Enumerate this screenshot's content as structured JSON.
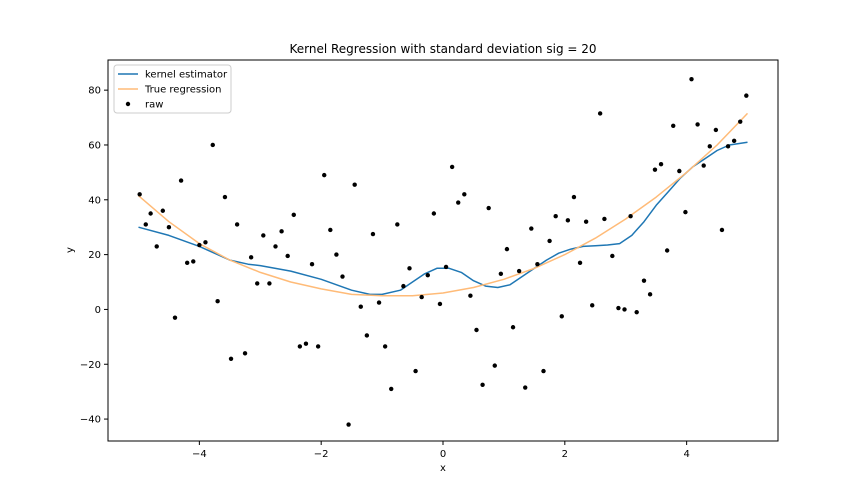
{
  "chart_data": {
    "type": "line",
    "title": "Kernel Regression with standard deviation sig = 20",
    "xlabel": "x",
    "ylabel": "y",
    "xlim": [
      -5.5,
      5.5
    ],
    "ylim": [
      -48,
      91
    ],
    "xticks": [
      -4,
      -2,
      0,
      2,
      4
    ],
    "xtick_labels": [
      "−4",
      "−2",
      "0",
      "2",
      "4"
    ],
    "yticks": [
      -40,
      -20,
      0,
      20,
      40,
      60,
      80
    ],
    "ytick_labels": [
      "−40",
      "−20",
      "0",
      "20",
      "40",
      "60",
      "80"
    ],
    "grid": false,
    "legend_position": "top-left",
    "legend": [
      {
        "label": "kernel estimator",
        "kind": "line",
        "color": "#1f77b4"
      },
      {
        "label": "True regression",
        "kind": "line",
        "color": "#ffbb78"
      },
      {
        "label": "raw",
        "kind": "marker",
        "color": "#000000"
      }
    ],
    "series": [
      {
        "name": "kernel estimator",
        "color": "#1f77b4",
        "x": [
          -5.0,
          -4.5,
          -4.0,
          -3.5,
          -3.2,
          -3.0,
          -2.5,
          -2.0,
          -1.5,
          -1.2,
          -1.0,
          -0.7,
          -0.5,
          -0.3,
          -0.1,
          0.1,
          0.3,
          0.5,
          0.7,
          0.9,
          1.1,
          1.3,
          1.5,
          1.7,
          1.9,
          2.1,
          2.3,
          2.5,
          2.7,
          2.9,
          3.1,
          3.3,
          3.5,
          3.7,
          3.9,
          4.1,
          4.3,
          4.5,
          4.7,
          5.0
        ],
        "y": [
          30,
          27,
          23,
          18,
          16.5,
          16,
          14,
          11,
          7,
          5.5,
          5.5,
          7,
          10,
          13,
          15,
          15,
          13.5,
          10.5,
          8.5,
          8,
          9,
          12,
          15,
          18,
          20.5,
          22,
          23,
          23.2,
          23.5,
          24,
          27,
          32,
          38,
          43,
          48,
          52,
          55,
          58,
          60,
          61
        ]
      },
      {
        "name": "True regression",
        "color": "#ffbb78",
        "x": [
          -5.0,
          -4.5,
          -4.0,
          -3.5,
          -3.0,
          -2.5,
          -2.0,
          -1.5,
          -1.0,
          -0.5,
          0.0,
          0.5,
          1.0,
          1.5,
          2.0,
          2.5,
          3.0,
          3.5,
          4.0,
          4.5,
          5.0
        ],
        "y": [
          41.5,
          32,
          24,
          18,
          13.5,
          10,
          7.5,
          5.5,
          5,
          5,
          6,
          8,
          11,
          15,
          20,
          26,
          33,
          41,
          50,
          60,
          71.5
        ]
      },
      {
        "name": "raw",
        "type": "scatter",
        "color": "#000000",
        "points": [
          [
            -4.98,
            42
          ],
          [
            -4.88,
            31
          ],
          [
            -4.8,
            35
          ],
          [
            -4.7,
            23
          ],
          [
            -4.6,
            36
          ],
          [
            -4.5,
            30
          ],
          [
            -4.4,
            -3
          ],
          [
            -4.3,
            47
          ],
          [
            -4.2,
            17
          ],
          [
            -4.1,
            17.5
          ],
          [
            -4.0,
            23.5
          ],
          [
            -3.9,
            24.5
          ],
          [
            -3.78,
            60
          ],
          [
            -3.7,
            3
          ],
          [
            -3.58,
            41
          ],
          [
            -3.48,
            -18
          ],
          [
            -3.38,
            31
          ],
          [
            -3.25,
            -16
          ],
          [
            -3.15,
            19
          ],
          [
            -3.05,
            9.5
          ],
          [
            -2.95,
            27
          ],
          [
            -2.85,
            9.5
          ],
          [
            -2.75,
            23
          ],
          [
            -2.65,
            28.5
          ],
          [
            -2.55,
            19.5
          ],
          [
            -2.45,
            34.5
          ],
          [
            -2.35,
            -13.5
          ],
          [
            -2.25,
            -12.5
          ],
          [
            -2.15,
            16.5
          ],
          [
            -2.05,
            -13.5
          ],
          [
            -1.95,
            49
          ],
          [
            -1.85,
            29
          ],
          [
            -1.75,
            20
          ],
          [
            -1.65,
            12
          ],
          [
            -1.55,
            -42
          ],
          [
            -1.45,
            45.5
          ],
          [
            -1.35,
            1
          ],
          [
            -1.25,
            -9.5
          ],
          [
            -1.15,
            27.5
          ],
          [
            -1.05,
            2.5
          ],
          [
            -0.95,
            -13.5
          ],
          [
            -0.85,
            -29
          ],
          [
            -0.75,
            31
          ],
          [
            -0.65,
            8.5
          ],
          [
            -0.55,
            15
          ],
          [
            -0.45,
            -22.5
          ],
          [
            -0.35,
            4.5
          ],
          [
            -0.25,
            12.5
          ],
          [
            -0.15,
            35
          ],
          [
            -0.05,
            2
          ],
          [
            0.05,
            15.5
          ],
          [
            0.15,
            52
          ],
          [
            0.25,
            39
          ],
          [
            0.35,
            42
          ],
          [
            0.45,
            5
          ],
          [
            0.55,
            -7.5
          ],
          [
            0.65,
            -27.5
          ],
          [
            0.75,
            37
          ],
          [
            0.85,
            -20.5
          ],
          [
            0.95,
            13
          ],
          [
            1.05,
            22
          ],
          [
            1.15,
            -6.5
          ],
          [
            1.25,
            14
          ],
          [
            1.35,
            -28.5
          ],
          [
            1.45,
            29.5
          ],
          [
            1.55,
            16.5
          ],
          [
            1.65,
            -22.5
          ],
          [
            1.75,
            25
          ],
          [
            1.85,
            34
          ],
          [
            1.95,
            -2.5
          ],
          [
            2.05,
            32.5
          ],
          [
            2.15,
            41
          ],
          [
            2.25,
            17
          ],
          [
            2.35,
            32
          ],
          [
            2.45,
            1.5
          ],
          [
            2.58,
            71.5
          ],
          [
            2.65,
            33
          ],
          [
            2.78,
            19.5
          ],
          [
            2.88,
            0.5
          ],
          [
            2.98,
            0
          ],
          [
            3.08,
            34
          ],
          [
            3.18,
            -1
          ],
          [
            3.3,
            10.5
          ],
          [
            3.4,
            5.5
          ],
          [
            3.48,
            51
          ],
          [
            3.58,
            53
          ],
          [
            3.68,
            21.5
          ],
          [
            3.78,
            67
          ],
          [
            3.88,
            50.5
          ],
          [
            3.98,
            35.5
          ],
          [
            4.08,
            84
          ],
          [
            4.18,
            67.5
          ],
          [
            4.28,
            52.5
          ],
          [
            4.38,
            59.5
          ],
          [
            4.48,
            65.5
          ],
          [
            4.58,
            29
          ],
          [
            4.68,
            59.5
          ],
          [
            4.78,
            61.5
          ],
          [
            4.88,
            68.5
          ],
          [
            4.98,
            78
          ]
        ]
      }
    ]
  }
}
